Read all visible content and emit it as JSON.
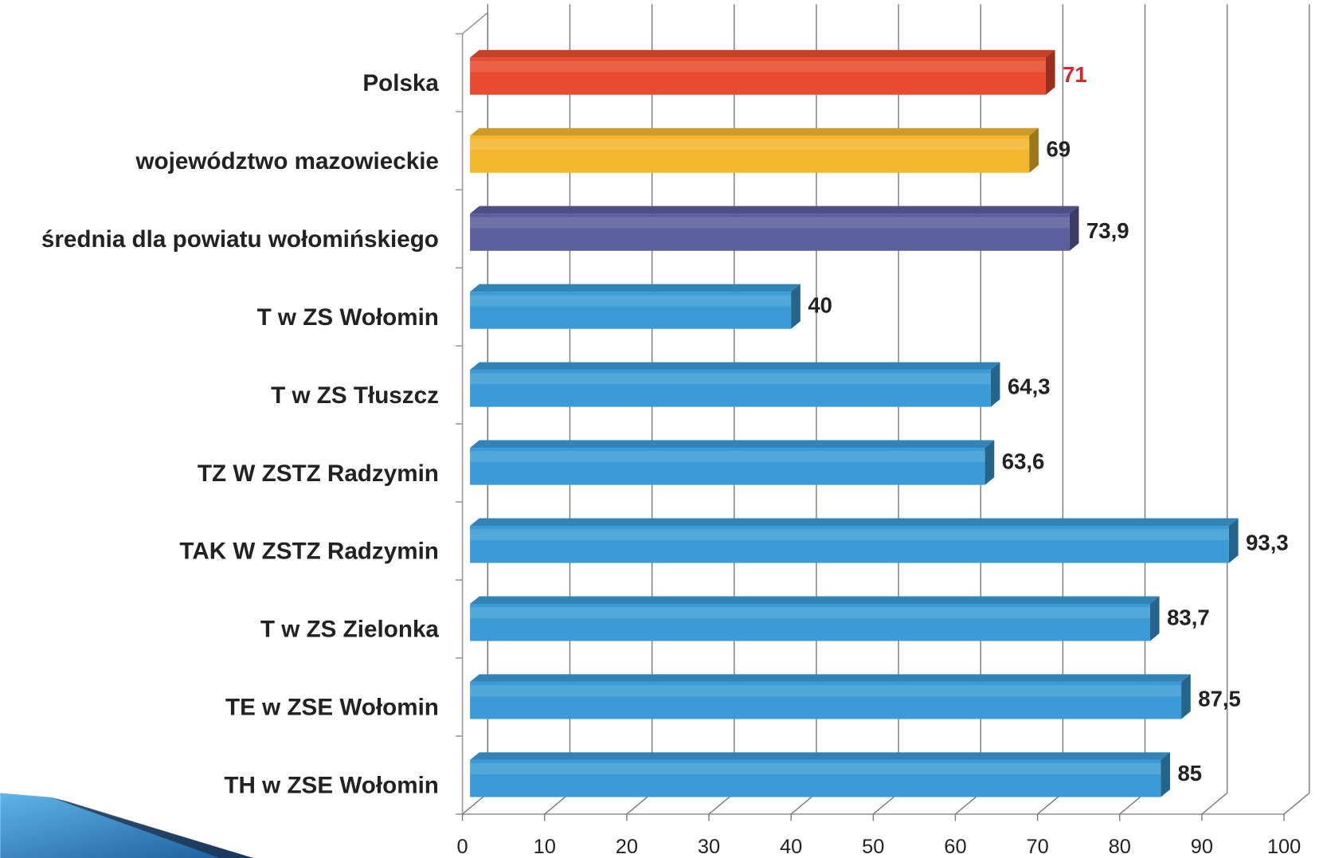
{
  "chart_data": {
    "type": "bar",
    "orientation": "horizontal",
    "categories": [
      "Polska",
      "województwo mazowieckie",
      "średnia dla powiatu wołomińskiego",
      "T w ZS Wołomin",
      "T w ZS Tłuszcz",
      "TZ W ZSTZ Radzymin",
      "TAK W ZSTZ Radzymin",
      "T w ZS Zielonka",
      "TE w ZSE Wołomin",
      "TH w ZSE Wołomin"
    ],
    "values": [
      71,
      69,
      73.9,
      40,
      64.3,
      63.6,
      93.3,
      83.7,
      87.5,
      85
    ],
    "value_labels": [
      "71",
      "69",
      "73,9",
      "40",
      "64,3",
      "63,6",
      "93,3",
      "83,7",
      "87,5",
      "85"
    ],
    "colors": [
      "#e94b2e",
      "#f4b62c",
      "#5b5f9e",
      "#3b9bd6",
      "#3b9bd6",
      "#3b9bd6",
      "#3b9bd6",
      "#3b9bd6",
      "#3b9bd6",
      "#3b9bd6"
    ],
    "value_label_colors": [
      "#d9262b",
      "#222222",
      "#222222",
      "#222222",
      "#222222",
      "#222222",
      "#222222",
      "#222222",
      "#222222",
      "#222222"
    ],
    "xlim": [
      0,
      100
    ],
    "xticks": [
      0,
      10,
      20,
      30,
      40,
      50,
      60,
      70,
      80,
      90,
      100
    ],
    "grid": true
  }
}
